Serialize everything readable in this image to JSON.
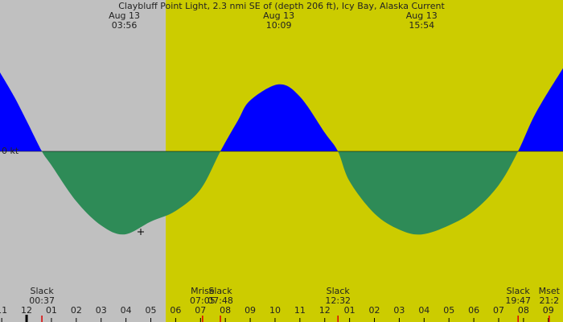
{
  "chart_data": {
    "type": "tide-current",
    "title": "Claybluff Point Light, 2.3 nmi SE of (depth 206 ft), Icy Bay, Alaska Current",
    "xlim": [
      -1.07,
      21.59
    ],
    "ylim": [
      -5.3,
      4.7
    ],
    "yticks": [
      {
        "value": 0,
        "label": "0 kt"
      }
    ],
    "xticks": [
      {
        "value": -1,
        "label": "11"
      },
      {
        "value": 0,
        "label": "12"
      },
      {
        "value": 1,
        "label": "01"
      },
      {
        "value": 2,
        "label": "02"
      },
      {
        "value": 3,
        "label": "03"
      },
      {
        "value": 4,
        "label": "04"
      },
      {
        "value": 5,
        "label": "05"
      },
      {
        "value": 6,
        "label": "06"
      },
      {
        "value": 7,
        "label": "07"
      },
      {
        "value": 8,
        "label": "08"
      },
      {
        "value": 9,
        "label": "09"
      },
      {
        "value": 10,
        "label": "10"
      },
      {
        "value": 11,
        "label": "11"
      },
      {
        "value": 12,
        "label": "12"
      },
      {
        "value": 13,
        "label": "01"
      },
      {
        "value": 14,
        "label": "02"
      },
      {
        "value": 15,
        "label": "03"
      },
      {
        "value": 16,
        "label": "04"
      },
      {
        "value": 17,
        "label": "05"
      },
      {
        "value": 18,
        "label": "06"
      },
      {
        "value": 19,
        "label": "07"
      },
      {
        "value": 20,
        "label": "08"
      },
      {
        "value": 21,
        "label": "09"
      }
    ],
    "midnight_hour": 0,
    "night_color": "#c0c0c0",
    "day_color": "#cccc00",
    "day_start_hour": 5.6,
    "flood_color": "#0000ff",
    "ebb_color": "#2e8b57",
    "event_tick_color": "#dd0000",
    "x": [
      -1.07,
      -0.5,
      0,
      0.617,
      1,
      2,
      3,
      3.93,
      5,
      6,
      7,
      7.8,
      8.5,
      9,
      10.15,
      11,
      12,
      12.53,
      13,
      14,
      15,
      15.9,
      17,
      18,
      19,
      19.78,
      20.5,
      21.59
    ],
    "values": [
      2.45,
      1.7,
      0.95,
      0,
      -0.43,
      -1.55,
      -2.3,
      -2.58,
      -2.18,
      -1.85,
      -1.18,
      0,
      0.95,
      1.58,
      2.08,
      1.7,
      0.58,
      0,
      -0.93,
      -1.93,
      -2.43,
      -2.58,
      -2.3,
      -1.85,
      -1.05,
      0,
      1.2,
      2.58
    ],
    "extremes": [
      {
        "date": "Aug 13",
        "time": "03:56"
      },
      {
        "date": "Aug 13",
        "time": "10:09"
      },
      {
        "date": "Aug 13",
        "time": "15:54"
      }
    ],
    "events": [
      {
        "label": "Slack",
        "time": "00:37"
      },
      {
        "label": "Mrise",
        "time": "07:05"
      },
      {
        "label": "Slack",
        "time": "07:48"
      },
      {
        "label": "Slack",
        "time": "12:32"
      },
      {
        "label": "Slack",
        "time": "19:47"
      },
      {
        "label": "Mset",
        "time": "21:2"
      }
    ]
  }
}
